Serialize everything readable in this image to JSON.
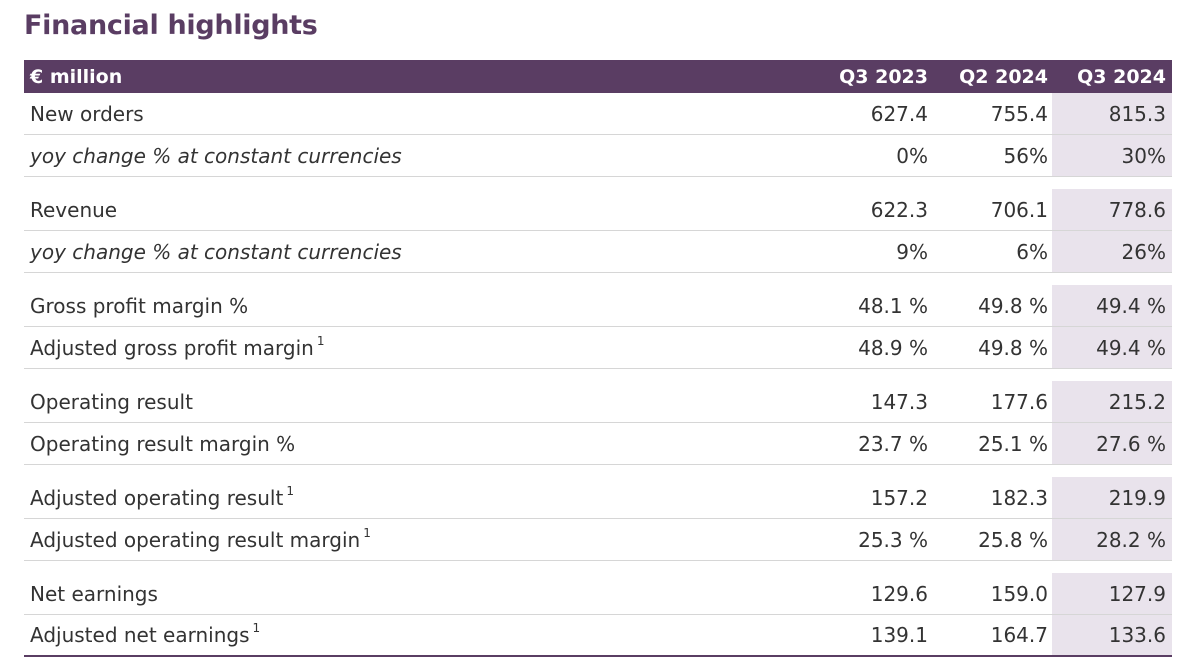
{
  "title": "Financial highlights",
  "table": {
    "header": {
      "label": "€ million",
      "cols": [
        "Q3 2023",
        "Q2 2024",
        "Q3 2024"
      ]
    },
    "rows": [
      {
        "label": "New orders",
        "sup": "",
        "values": [
          "627.4",
          "755.4",
          "815.3"
        ]
      },
      {
        "label": "yoy change % at constant currencies",
        "sup": "",
        "values": [
          "0%",
          "56%",
          "30%"
        ]
      },
      {
        "label": "Revenue",
        "sup": "",
        "values": [
          "622.3",
          "706.1",
          "778.6"
        ]
      },
      {
        "label": "yoy change % at constant currencies",
        "sup": "",
        "values": [
          "9%",
          "6%",
          "26%"
        ]
      },
      {
        "label": "Gross profit margin %",
        "sup": "",
        "values": [
          "48.1 %",
          "49.8 %",
          "49.4 %"
        ]
      },
      {
        "label": "Adjusted gross profit margin",
        "sup": "1",
        "values": [
          "48.9 %",
          "49.8 %",
          "49.4 %"
        ]
      },
      {
        "label": "Operating result",
        "sup": "",
        "values": [
          "147.3",
          "177.6",
          "215.2"
        ]
      },
      {
        "label": "Operating result margin %",
        "sup": "",
        "values": [
          "23.7 %",
          "25.1 %",
          "27.6 %"
        ]
      },
      {
        "label": "Adjusted operating result",
        "sup": "1",
        "values": [
          "157.2",
          "182.3",
          "219.9"
        ]
      },
      {
        "label": "Adjusted operating result margin",
        "sup": "1",
        "values": [
          "25.3 %",
          "25.8 %",
          "28.2 %"
        ]
      },
      {
        "label": "Net earnings",
        "sup": "",
        "values": [
          "129.6",
          "159.0",
          "127.9"
        ]
      },
      {
        "label": "Adjusted net earnings",
        "sup": "1",
        "values": [
          "139.1",
          "164.7",
          "133.6"
        ]
      }
    ]
  }
}
